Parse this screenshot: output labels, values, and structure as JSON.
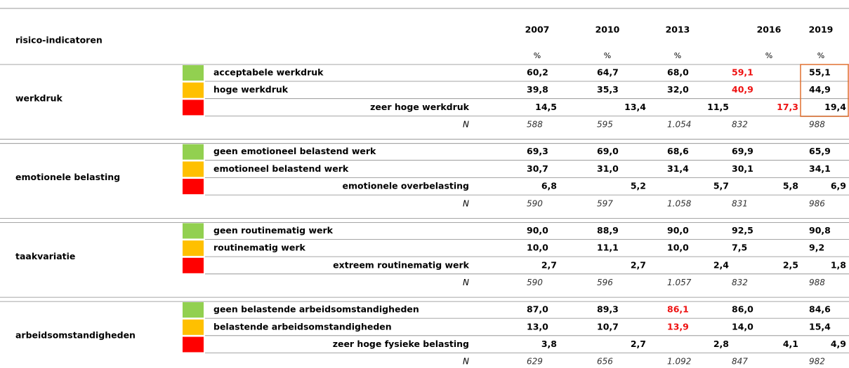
{
  "header": {
    "title": "risico-indicatoren",
    "years": [
      "2007",
      "2010",
      "2013",
      "2016",
      "2019"
    ],
    "units": [
      "%",
      "%",
      "%",
      "%",
      "%"
    ]
  },
  "level_colors": [
    "#92d050",
    "#ffc000",
    "#ff0000"
  ],
  "highlight_color": "#ee1111",
  "groups": [
    {
      "label": "werkdruk",
      "rows": [
        {
          "label": "acceptabele werkdruk",
          "values": [
            "60,2",
            "64,7",
            "68,0",
            "59,1",
            "55,1"
          ],
          "highlighted": [
            3
          ]
        },
        {
          "label": "hoge werkdruk",
          "values": [
            "39,8",
            "35,3",
            "32,0",
            "40,9",
            "44,9"
          ],
          "highlighted": [
            3
          ]
        },
        {
          "label": "zeer hoge werkdruk",
          "values": [
            "14,5",
            "13,4",
            "11,5",
            "17,3",
            "19,4"
          ],
          "highlighted": [
            3
          ]
        }
      ],
      "n_label": "N",
      "n": [
        "588",
        "595",
        "1.054",
        "832",
        "988"
      ]
    },
    {
      "label": "emotionele belasting",
      "rows": [
        {
          "label": "geen emotioneel belastend werk",
          "values": [
            "69,3",
            "69,0",
            "68,6",
            "69,9",
            "65,9"
          ],
          "highlighted": []
        },
        {
          "label": "emotioneel belastend werk",
          "values": [
            "30,7",
            "31,0",
            "31,4",
            "30,1",
            "34,1"
          ],
          "highlighted": []
        },
        {
          "label": "emotionele overbelasting",
          "values": [
            "6,8",
            "5,2",
            "5,7",
            "5,8",
            "6,9"
          ],
          "highlighted": []
        }
      ],
      "n_label": "N",
      "n": [
        "590",
        "597",
        "1.058",
        "831",
        "986"
      ]
    },
    {
      "label": "taakvariatie",
      "rows": [
        {
          "label": "geen routinematig werk",
          "values": [
            "90,0",
            "88,9",
            "90,0",
            "92,5",
            "90,8"
          ],
          "highlighted": []
        },
        {
          "label": "routinematig werk",
          "values": [
            "10,0",
            "11,1",
            "10,0",
            "7,5",
            "9,2"
          ],
          "highlighted": []
        },
        {
          "label": "extreem routinematig werk",
          "values": [
            "2,7",
            "2,7",
            "2,4",
            "2,5",
            "1,8"
          ],
          "highlighted": []
        }
      ],
      "n_label": "N",
      "n": [
        "590",
        "596",
        "1.057",
        "832",
        "988"
      ]
    },
    {
      "label": "arbeidsomstandigheden",
      "rows": [
        {
          "label": "geen belastende arbeidsomstandigheden",
          "values": [
            "87,0",
            "89,3",
            "86,1",
            "86,0",
            "84,6"
          ],
          "highlighted": [
            2
          ]
        },
        {
          "label": "belastende arbeidsomstandigheden",
          "values": [
            "13,0",
            "10,7",
            "13,9",
            "14,0",
            "15,4"
          ],
          "highlighted": [
            2
          ]
        },
        {
          "label": "zeer hoge fysieke belasting",
          "values": [
            "3,8",
            "2,7",
            "2,8",
            "4,1",
            "4,9"
          ],
          "highlighted": []
        }
      ],
      "n_label": "N",
      "n": [
        "629",
        "656",
        "1.092",
        "847",
        "982"
      ]
    }
  ]
}
